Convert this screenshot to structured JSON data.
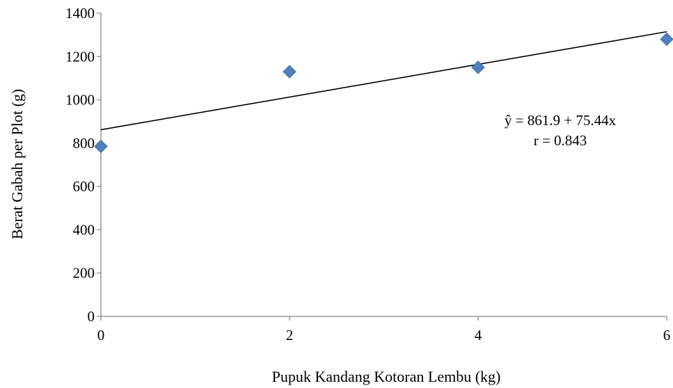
{
  "chart_data": {
    "type": "scatter",
    "title": "",
    "xlabel": "Pupuk Kandang Kotoran Lembu (kg)",
    "ylabel": "Berat Gabah per Plot (g)",
    "xlim": [
      0,
      6
    ],
    "ylim": [
      0,
      1400
    ],
    "x_ticks": [
      0,
      2,
      4,
      6
    ],
    "y_ticks": [
      0,
      200,
      400,
      600,
      800,
      1000,
      1200,
      1400
    ],
    "grid": false,
    "legend": "none",
    "marker": "diamond",
    "marker_color": "#4F81BD",
    "series": [
      {
        "x": [
          0,
          2,
          4,
          6
        ],
        "y": [
          785,
          1130,
          1150,
          1280
        ]
      }
    ],
    "trendline": {
      "type": "linear",
      "intercept": 861.9,
      "slope": 75.44,
      "color": "#000000"
    },
    "annotations": {
      "equation": "ŷ = 861.9  + 75.44x",
      "r_value": "r  = 0.843"
    }
  }
}
